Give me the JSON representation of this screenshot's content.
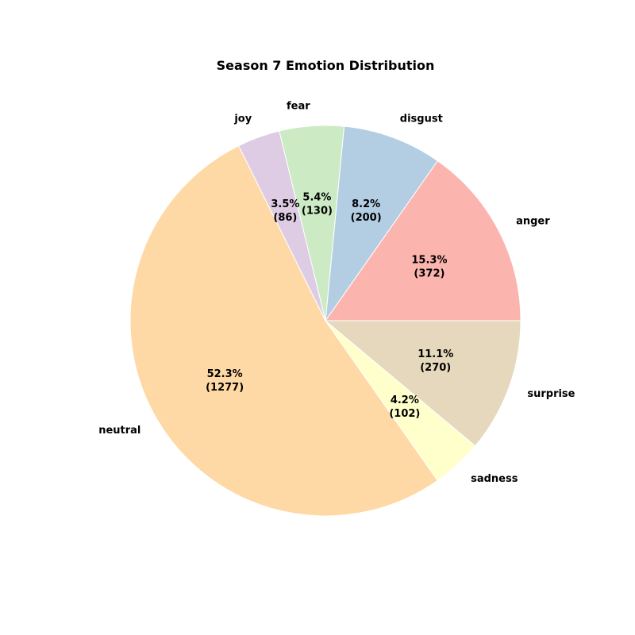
{
  "chart_data": {
    "type": "pie",
    "title": "Season 7 Emotion Distribution",
    "start_angle_deg": 0,
    "direction": "counterclockwise",
    "slices": [
      {
        "label": "anger",
        "value": 372,
        "percent": "15.3%",
        "count_text": "(372)",
        "color": "#fbb4ae"
      },
      {
        "label": "disgust",
        "value": 200,
        "percent": "8.2%",
        "count_text": "(200)",
        "color": "#b3cde3"
      },
      {
        "label": "fear",
        "value": 130,
        "percent": "5.4%",
        "count_text": "(130)",
        "color": "#ccebc5"
      },
      {
        "label": "joy",
        "value": 86,
        "percent": "3.5%",
        "count_text": "(86)",
        "color": "#decbe4"
      },
      {
        "label": "neutral",
        "value": 1277,
        "percent": "52.3%",
        "count_text": "(1277)",
        "color": "#fed9a6"
      },
      {
        "label": "sadness",
        "value": 102,
        "percent": "4.2%",
        "count_text": "(102)",
        "color": "#ffffcc"
      },
      {
        "label": "surprise",
        "value": 270,
        "percent": "11.1%",
        "count_text": "(270)",
        "color": "#e5d8bd"
      }
    ]
  }
}
